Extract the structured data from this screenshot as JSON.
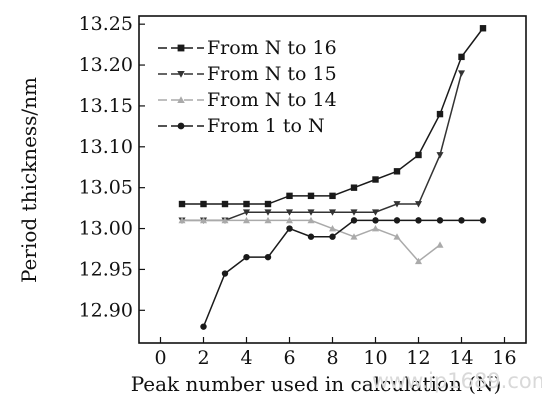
{
  "chart_data": {
    "type": "line",
    "xlabel": "Peak number used in calculation (N)",
    "ylabel": "Period thickness/nm",
    "xlim": [
      -1,
      17
    ],
    "ylim": [
      12.86,
      13.26
    ],
    "xticks": [
      0,
      2,
      4,
      6,
      8,
      10,
      12,
      14,
      16
    ],
    "yticks": [
      12.9,
      12.95,
      13.0,
      13.05,
      13.1,
      13.15,
      13.2,
      13.25
    ],
    "yticks_labels": [
      "12.90",
      "12.95",
      "13.00",
      "13.05",
      "13.10",
      "13.15",
      "13.20",
      "13.25"
    ],
    "grid": false,
    "legend_position": "top-left",
    "series": [
      {
        "name": "From N to 16",
        "marker": "square",
        "color": "#1a1a1a",
        "x": [
          1,
          2,
          3,
          4,
          5,
          6,
          7,
          8,
          9,
          10,
          11,
          12,
          13,
          14,
          15
        ],
        "y": [
          13.03,
          13.03,
          13.03,
          13.03,
          13.03,
          13.04,
          13.04,
          13.04,
          13.05,
          13.06,
          13.07,
          13.09,
          13.14,
          13.21,
          13.245
        ]
      },
      {
        "name": "From N to 15",
        "marker": "triangle-down",
        "color": "#333333",
        "x": [
          1,
          2,
          3,
          4,
          5,
          6,
          7,
          8,
          9,
          10,
          11,
          12,
          13,
          14
        ],
        "y": [
          13.01,
          13.01,
          13.01,
          13.02,
          13.02,
          13.02,
          13.02,
          13.02,
          13.02,
          13.02,
          13.03,
          13.03,
          13.09,
          13.19
        ]
      },
      {
        "name": "From N to 14",
        "marker": "triangle-up",
        "color": "#aaaaaa",
        "x": [
          1,
          2,
          3,
          4,
          5,
          6,
          7,
          8,
          9,
          10,
          11,
          12,
          13
        ],
        "y": [
          13.01,
          13.01,
          13.01,
          13.01,
          13.01,
          13.01,
          13.01,
          13.0,
          12.99,
          13.0,
          12.99,
          12.96,
          12.98
        ]
      },
      {
        "name": "From 1 to N",
        "marker": "circle",
        "color": "#1a1a1a",
        "x": [
          2,
          3,
          4,
          5,
          6,
          7,
          8,
          9,
          10,
          11,
          12,
          13,
          14,
          15
        ],
        "y": [
          12.88,
          12.945,
          12.965,
          12.965,
          13.0,
          12.99,
          12.99,
          13.01,
          13.01,
          13.01,
          13.01,
          13.01,
          13.01,
          13.01
        ]
      }
    ]
  },
  "watermark_text": "www.ip1689.com"
}
